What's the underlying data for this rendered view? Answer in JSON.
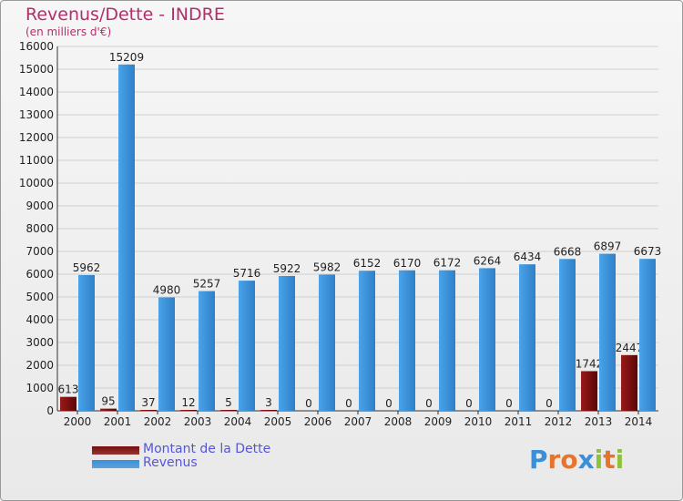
{
  "header": {
    "title": "Revenus/Dette - INDRE",
    "subtitle": "(en milliers d'€)"
  },
  "legend": {
    "items": [
      {
        "label": "Montant de la Dette",
        "color": "#7a0a0a"
      },
      {
        "label": "Revenus",
        "color": "#3a8fd8"
      }
    ]
  },
  "logo": {
    "text": "Proxiti",
    "letters": [
      {
        "ch": "P",
        "color": "#3a8fd8"
      },
      {
        "ch": "r",
        "color": "#e8742a"
      },
      {
        "ch": "o",
        "color": "#e8742a"
      },
      {
        "ch": "x",
        "color": "#3a8fd8"
      },
      {
        "ch": "i",
        "color": "#8fc23a"
      },
      {
        "ch": "t",
        "color": "#e8742a"
      },
      {
        "ch": "i",
        "color": "#8fc23a"
      }
    ]
  },
  "chart_data": {
    "type": "bar",
    "title": "Revenus/Dette - INDRE",
    "subtitle": "(en milliers d'€)",
    "categories": [
      "2000",
      "2001",
      "2002",
      "2003",
      "2004",
      "2005",
      "2006",
      "2007",
      "2008",
      "2009",
      "2010",
      "2011",
      "2012",
      "2013",
      "2014"
    ],
    "series": [
      {
        "name": "Montant de la Dette",
        "color": "#7a0a0a",
        "values": [
          613,
          95,
          37,
          12,
          5,
          3,
          0,
          0,
          0,
          0,
          0,
          0,
          0,
          1742,
          2447
        ],
        "labels": [
          "613",
          "95",
          "37",
          "12",
          "5",
          "3",
          "0",
          "0",
          "0",
          "0",
          "0",
          "0",
          "0",
          "1742",
          "2447"
        ]
      },
      {
        "name": "Revenus",
        "color": "#3a8fd8",
        "values": [
          5962,
          15209,
          4980,
          5257,
          5716,
          5922,
          5982,
          6152,
          6170,
          6172,
          6264,
          6434,
          6668,
          6897,
          6673
        ],
        "labels": [
          "5962",
          "15209",
          "4980",
          "5257",
          "5716",
          "5922",
          "5982",
          "6152",
          "6170",
          "6172",
          "6264",
          "6434",
          "6668",
          "6897",
          "6673"
        ]
      }
    ],
    "ylim": [
      0,
      16000
    ],
    "yticks": [
      0,
      1000,
      2000,
      3000,
      4000,
      5000,
      6000,
      7000,
      8000,
      9000,
      10000,
      11000,
      12000,
      13000,
      14000,
      15000,
      16000
    ],
    "grid": true,
    "legend_position": "bottom-left"
  }
}
